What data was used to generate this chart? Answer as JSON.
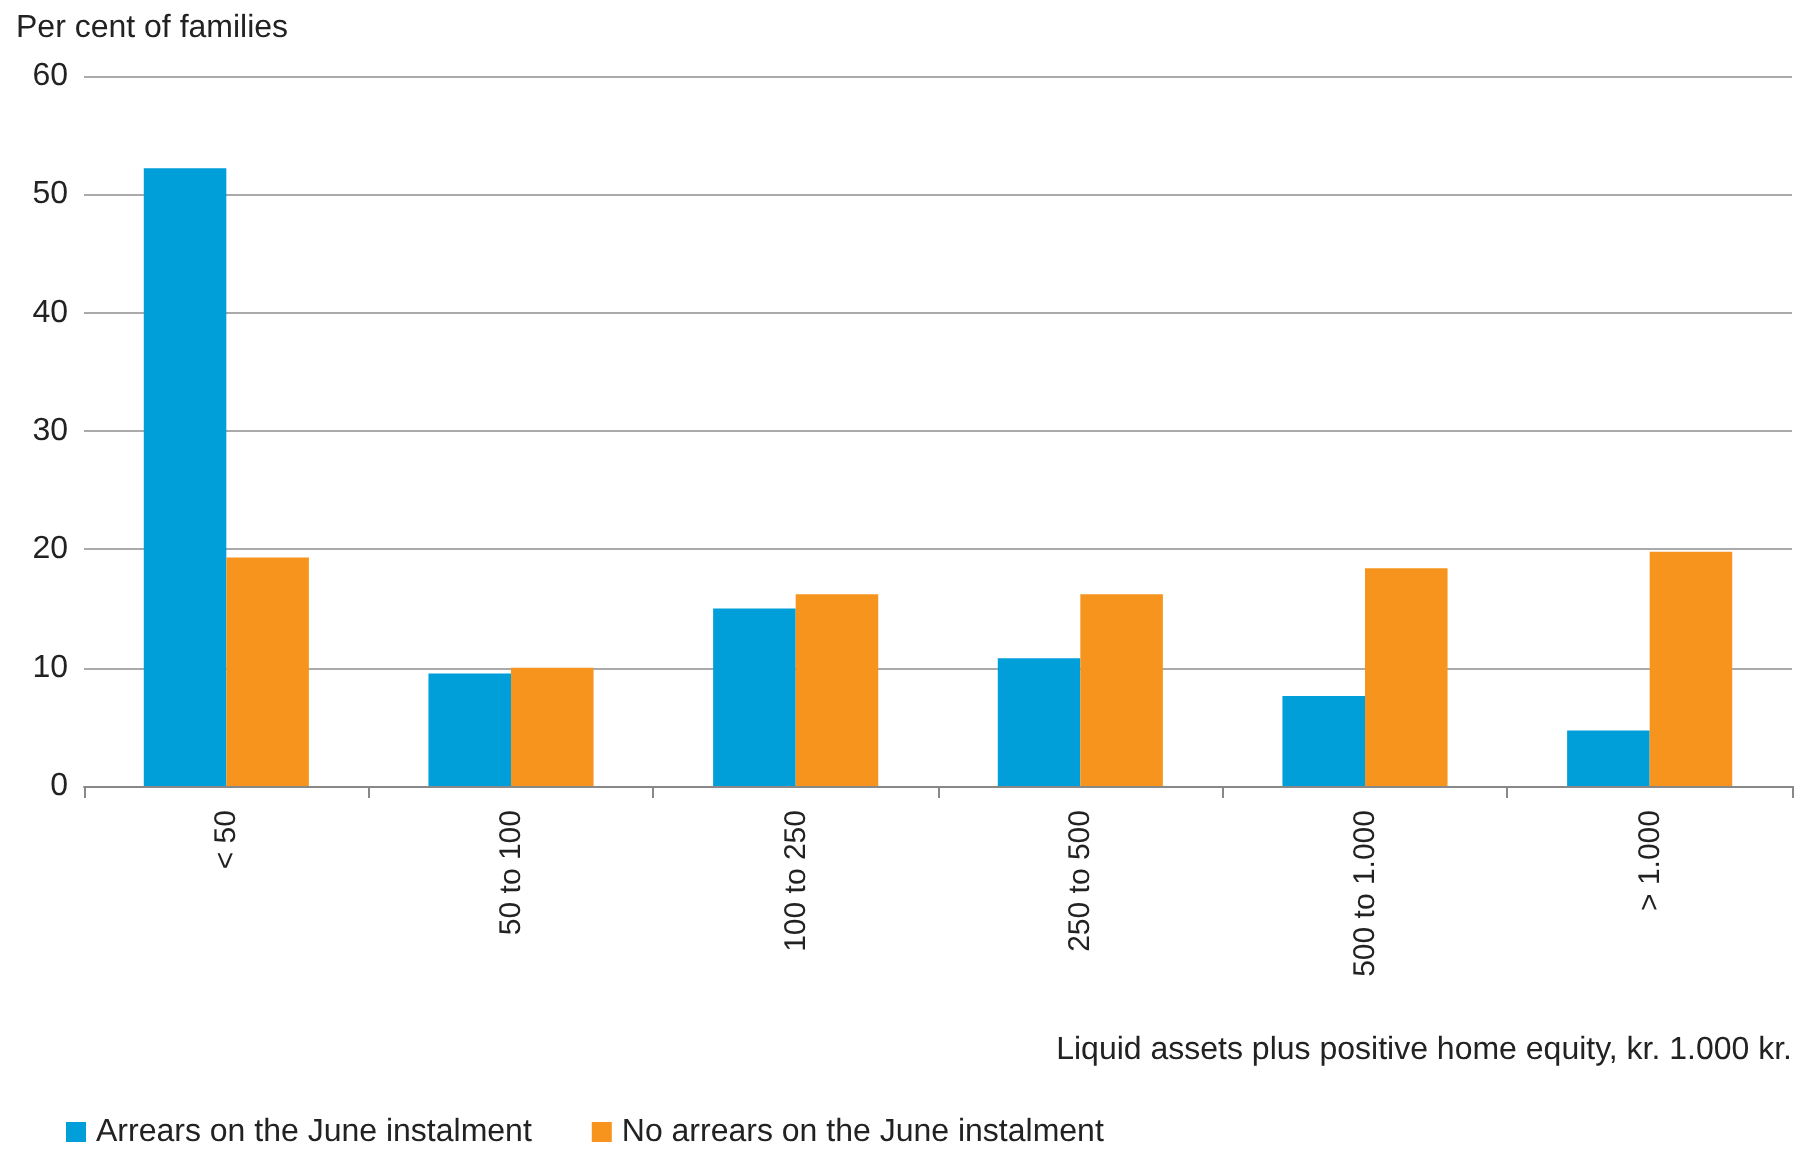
{
  "chart_data": {
    "type": "bar",
    "ylabel": "Per cent of families",
    "xlabel": "Liquid assets plus positive home equity, kr. 1.000 kr.",
    "categories": [
      "< 50",
      "50 to 100",
      "100 to 250",
      "250 to 500",
      "500 to 1.000",
      "> 1.000"
    ],
    "series": [
      {
        "name": "Arrears on the June instalment",
        "color": "#009fda",
        "values": [
          52.2,
          9.5,
          15.0,
          10.8,
          7.6,
          4.7
        ]
      },
      {
        "name": "No arrears on the June instalment",
        "color": "#f7941d",
        "values": [
          19.3,
          10.0,
          16.2,
          16.2,
          18.4,
          19.8
        ]
      }
    ],
    "ylim": [
      0,
      60
    ],
    "yticks": [
      0,
      10,
      20,
      30,
      40,
      50,
      60
    ],
    "grid": "y",
    "legend": "bottom left"
  }
}
